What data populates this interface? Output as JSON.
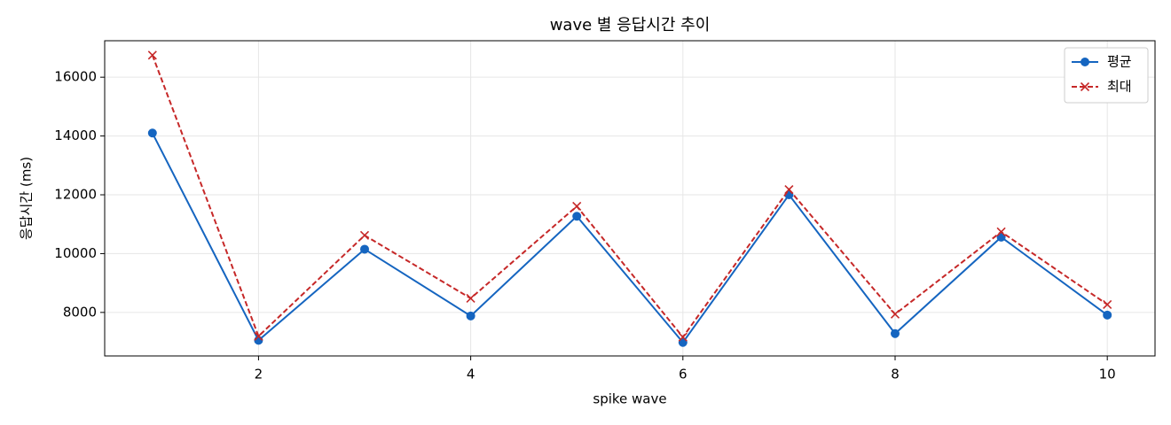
{
  "chart_data": {
    "type": "line",
    "title": "wave 별 응답시간 추이",
    "x_label": "spike wave",
    "y_label": "응답시간 (ms)",
    "x": [
      1,
      2,
      3,
      4,
      5,
      6,
      7,
      8,
      9,
      10
    ],
    "series": [
      {
        "name": "평균",
        "color": "#1565c0",
        "marker": "o",
        "linestyle": "solid",
        "values": [
          14100,
          7050,
          10150,
          7880,
          11270,
          6980,
          12000,
          7280,
          10560,
          7910
        ]
      },
      {
        "name": "최대",
        "color": "#c62828",
        "marker": "x",
        "linestyle": "dashed",
        "values": [
          16750,
          7190,
          10620,
          8480,
          11610,
          7160,
          12180,
          7940,
          10740,
          8270
        ]
      }
    ],
    "xlim": [
      0.55,
      10.45
    ],
    "xticks": [
      2,
      4,
      6,
      8,
      10
    ],
    "ylim": [
      6520,
      17240
    ],
    "yticks": [
      8000,
      10000,
      12000,
      14000,
      16000
    ],
    "grid": true,
    "legend": "upper right"
  }
}
